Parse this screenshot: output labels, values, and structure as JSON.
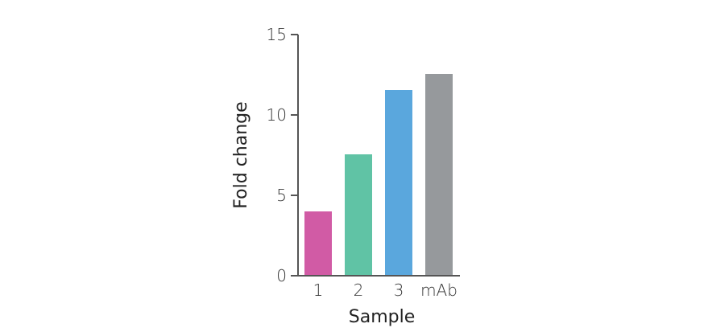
{
  "chart_data": {
    "type": "bar",
    "title": "",
    "xlabel": "Sample",
    "ylabel": "Fold change",
    "categories": [
      "1",
      "2",
      "3",
      "mAb"
    ],
    "values": [
      4.0,
      7.55,
      11.55,
      12.55
    ],
    "colors": [
      "#d15ba5",
      "#60c3a5",
      "#5aa7dd",
      "#96999c"
    ],
    "ylim": [
      0,
      15
    ],
    "yticks": [
      0,
      5,
      10,
      15
    ],
    "grid": false,
    "legend": null
  }
}
